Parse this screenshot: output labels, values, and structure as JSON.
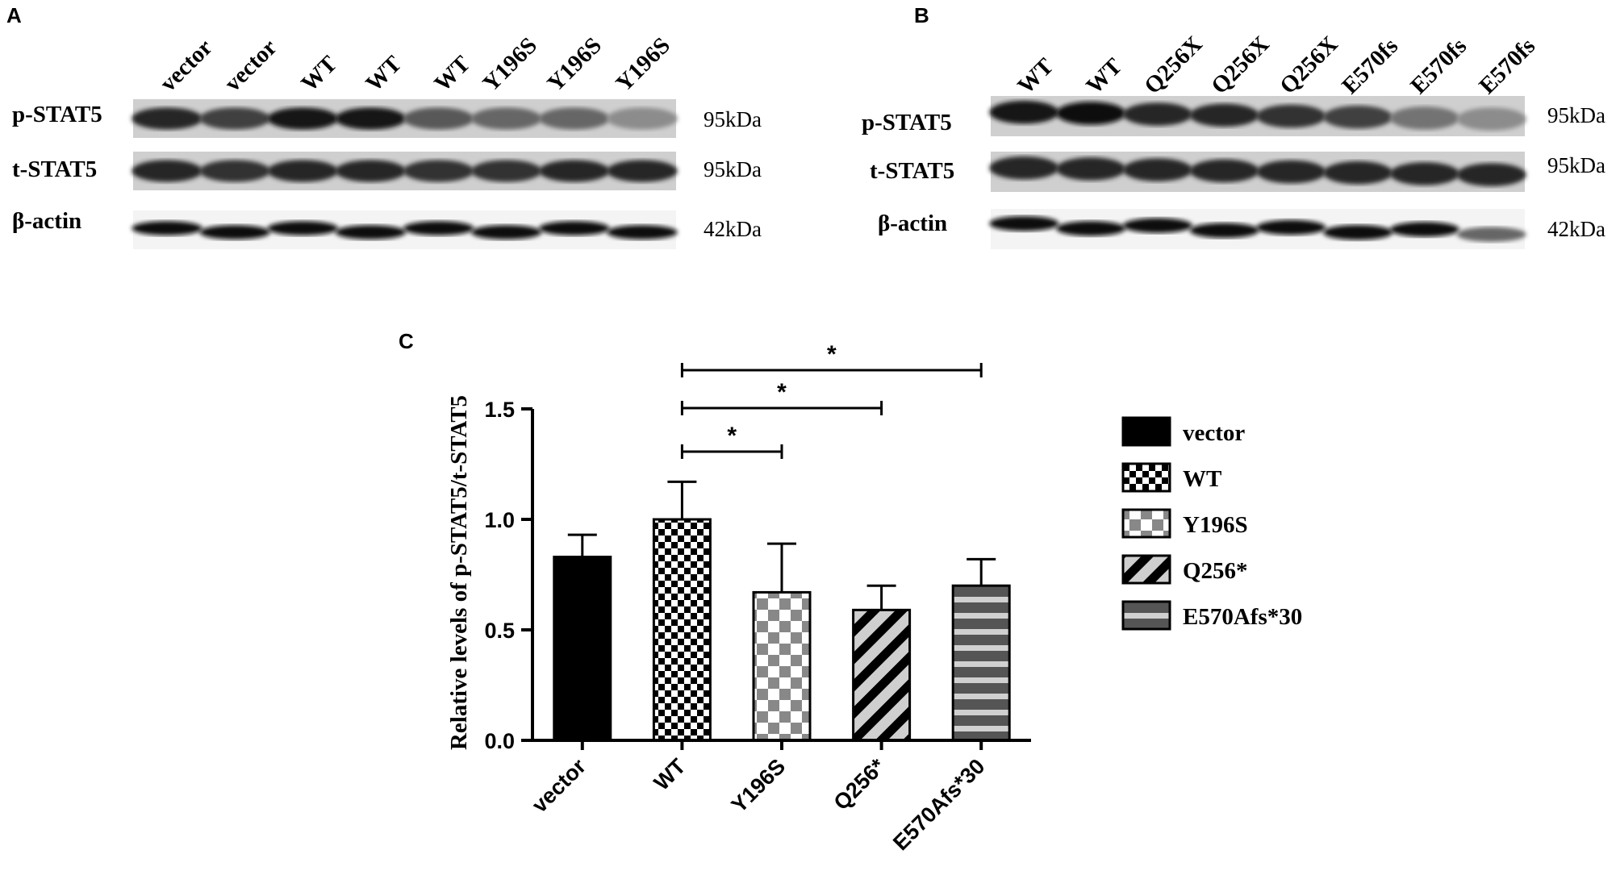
{
  "blots": [
    {
      "letter": "A",
      "lanes": [
        "vector",
        "vector",
        "WT",
        "WT",
        "WT",
        "Y196S",
        "Y196S",
        "Y196S"
      ],
      "rows": [
        {
          "label": "p-STAT5",
          "size": "95kDa"
        },
        {
          "label": "t-STAT5",
          "size": "95kDa"
        },
        {
          "label": "β-actin",
          "size": "42kDa"
        }
      ],
      "band_intensity": [
        [
          0.85,
          0.75,
          0.9,
          0.9,
          0.65,
          0.6,
          0.6,
          0.45
        ],
        [
          0.85,
          0.8,
          0.85,
          0.85,
          0.8,
          0.8,
          0.85,
          0.85
        ],
        [
          0.95,
          0.95,
          0.95,
          0.95,
          0.95,
          0.95,
          0.95,
          0.95
        ]
      ]
    },
    {
      "letter": "B",
      "lanes": [
        "WT",
        "WT",
        "Q256X",
        "Q256X",
        "Q256X",
        "E570fs",
        "E570fs",
        "E570fs"
      ],
      "rows": [
        {
          "label": "p-STAT5",
          "size": "95kDa"
        },
        {
          "label": "t-STAT5",
          "size": "95kDa"
        },
        {
          "label": "β-actin",
          "size": "42kDa"
        }
      ],
      "band_intensity": [
        [
          0.9,
          0.95,
          0.85,
          0.85,
          0.8,
          0.75,
          0.55,
          0.45
        ],
        [
          0.85,
          0.85,
          0.85,
          0.85,
          0.85,
          0.85,
          0.85,
          0.85
        ],
        [
          0.95,
          0.95,
          0.95,
          0.95,
          0.95,
          0.95,
          0.95,
          0.6
        ]
      ]
    }
  ],
  "chart_data": {
    "letter": "C",
    "type": "bar",
    "ylabel": "Relative levels of  p-STAT5/t-STAT5",
    "categories": [
      "vector",
      "WT",
      "Y196S",
      "Q256*",
      "E570Afs*30"
    ],
    "values": [
      0.83,
      1.0,
      0.67,
      0.59,
      0.7
    ],
    "errors": [
      0.1,
      0.17,
      0.22,
      0.11,
      0.12
    ],
    "ylim": [
      0.0,
      1.5
    ],
    "yticks": [
      "0.0",
      "0.5",
      "1.0",
      "1.5"
    ],
    "patterns": [
      "solid-black",
      "checker-small",
      "checker-large",
      "diagonal-stripes",
      "horizontal-stripes"
    ],
    "legend": [
      "vector",
      "WT",
      "Y196S",
      "Q256*",
      "E570Afs*30"
    ],
    "legend_position": "right",
    "significance": [
      {
        "from": "WT",
        "to": "Y196S",
        "label": "*"
      },
      {
        "from": "WT",
        "to": "Q256*",
        "label": "*"
      },
      {
        "from": "WT",
        "to": "E570Afs*30",
        "label": "*"
      }
    ]
  }
}
